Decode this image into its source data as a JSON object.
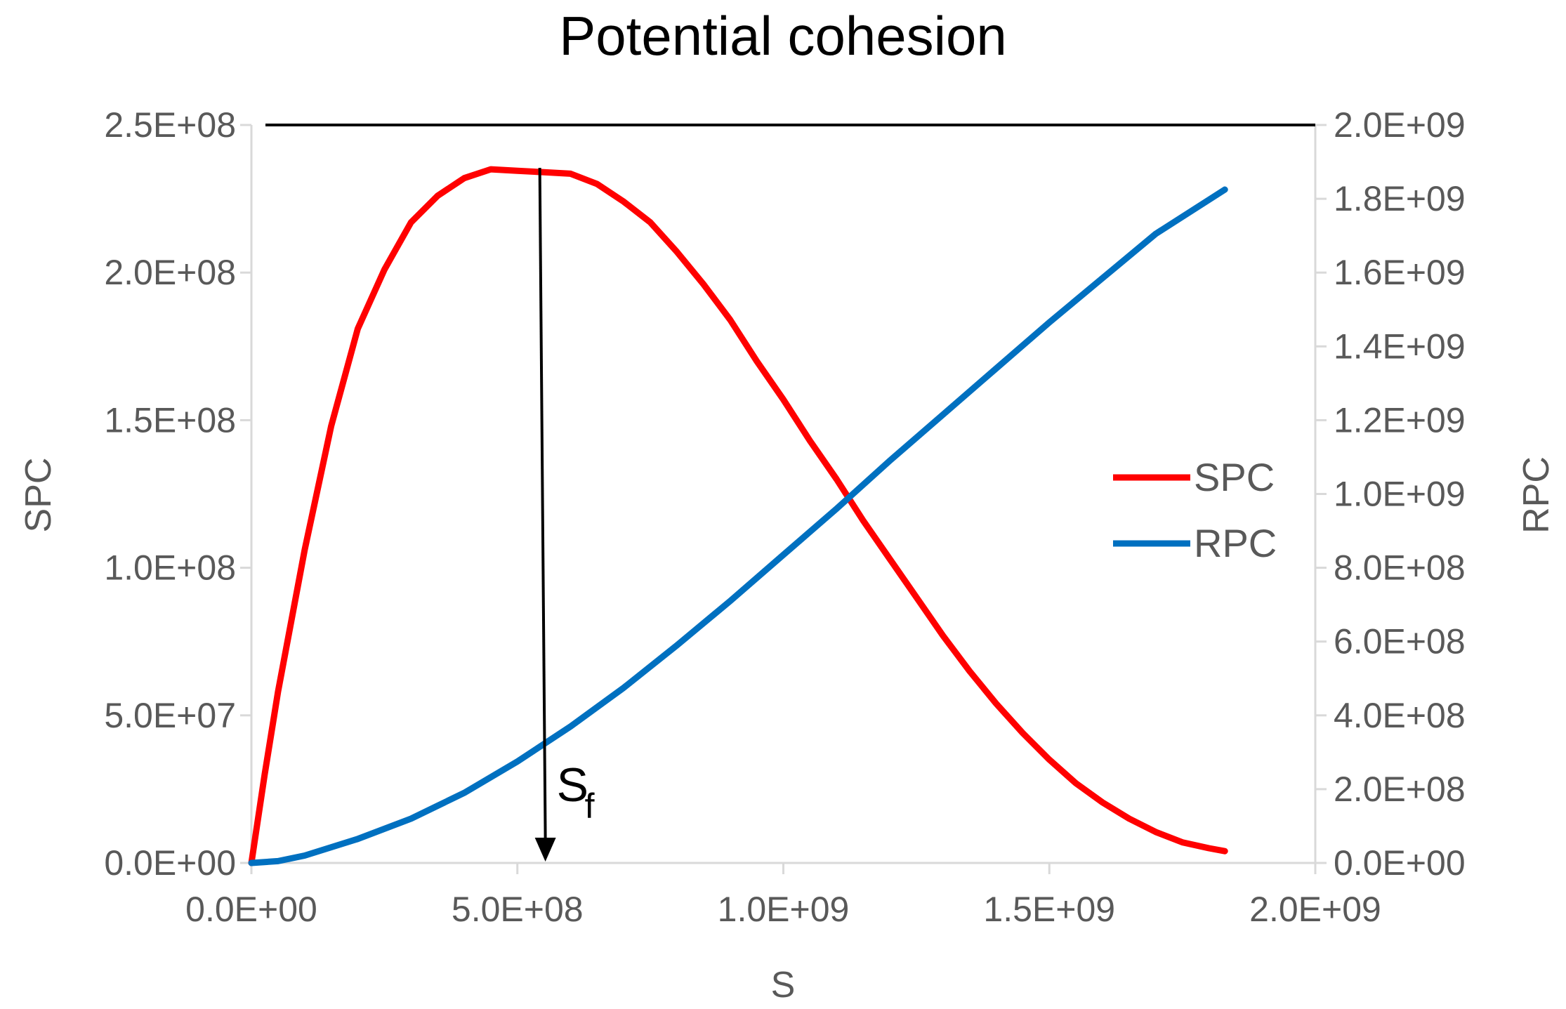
{
  "chart_data": {
    "type": "line",
    "title": "Potential cohesion",
    "xlabel": "S",
    "ylabel": "SPC",
    "y2label": "RPC",
    "xlim": [
      0,
      2000000000
    ],
    "ylim": [
      0,
      250000000
    ],
    "y2lim": [
      0,
      2000000000
    ],
    "x_ticks": [
      "0.0E+00",
      "5.0E+08",
      "1.0E+09",
      "1.5E+09",
      "2.0E+09"
    ],
    "y_ticks": [
      "0.0E+00",
      "5.0E+07",
      "1.0E+08",
      "1.5E+08",
      "2.0E+08",
      "2.5E+08"
    ],
    "y2_ticks": [
      "0.0E+00",
      "2.0E+08",
      "4.0E+08",
      "6.0E+08",
      "8.0E+08",
      "1.0E+09",
      "1.2E+09",
      "1.4E+09",
      "1.6E+09",
      "1.8E+09",
      "2.0E+09"
    ],
    "legend_position": "right",
    "grid": false,
    "series": [
      {
        "name": "SPC",
        "axis": "left",
        "color": "#FF0000",
        "x": [
          0,
          25000000,
          50000000,
          100000000,
          150000000,
          200000000,
          250000000,
          300000000,
          350000000,
          400000000,
          450000000,
          500000000,
          550000000,
          600000000,
          650000000,
          700000000,
          750000000,
          800000000,
          850000000,
          900000000,
          950000000,
          1000000000,
          1050000000,
          1100000000,
          1150000000,
          1200000000,
          1250000000,
          1300000000,
          1350000000,
          1400000000,
          1450000000,
          1500000000,
          1550000000,
          1600000000,
          1650000000,
          1700000000,
          1750000000,
          1800000000,
          1830000000
        ],
        "values": [
          0,
          30000000,
          58000000,
          106000000,
          148000000,
          181000000,
          201000000,
          217000000,
          226000000,
          232000000,
          235000000,
          234500000,
          234000000,
          233500000,
          230000000,
          224000000,
          217000000,
          207000000,
          196000000,
          184000000,
          170000000,
          157000000,
          143000000,
          130000000,
          116000000,
          103000000,
          90000000,
          77000000,
          65000000,
          54000000,
          44000000,
          35000000,
          27000000,
          20500000,
          15000000,
          10500000,
          7000000,
          5000000,
          4000000
        ]
      },
      {
        "name": "RPC",
        "axis": "right",
        "color": "#0070C0",
        "x": [
          0,
          50000000,
          100000000,
          200000000,
          300000000,
          400000000,
          500000000,
          600000000,
          700000000,
          800000000,
          900000000,
          1000000000,
          1100000000,
          1200000000,
          1300000000,
          1400000000,
          1500000000,
          1600000000,
          1700000000,
          1830000000
        ],
        "values": [
          0,
          5000000,
          20000000,
          65000000,
          120000000,
          190000000,
          275000000,
          370000000,
          475000000,
          590000000,
          710000000,
          835000000,
          960000000,
          1090000000,
          1215000000,
          1340000000,
          1465000000,
          1585000000,
          1705000000,
          1825000000
        ]
      }
    ],
    "annotations": {
      "hline_value": 250000000,
      "arrow_x": 550000000,
      "arrow_label": "S",
      "arrow_label_sub": "f"
    }
  }
}
